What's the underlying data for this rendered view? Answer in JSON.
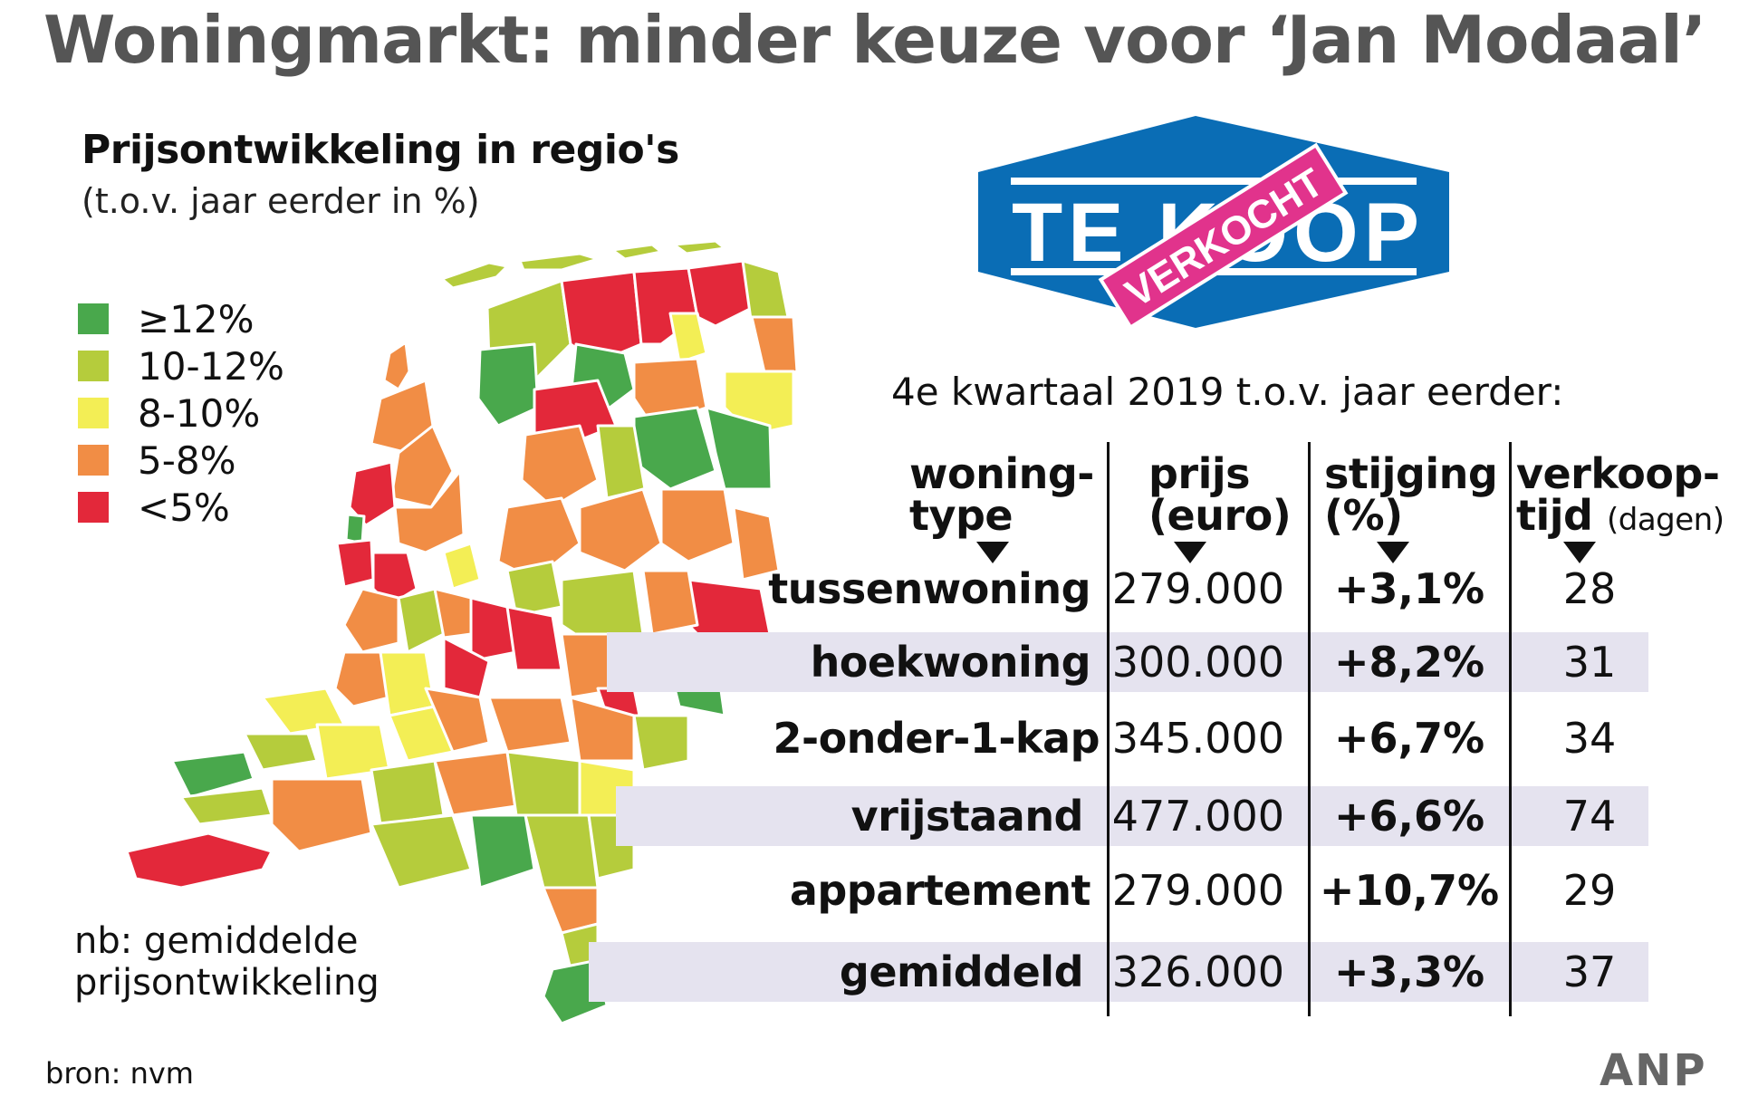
{
  "title": "Woningmarkt: minder keuze voor ‘Jan Modaal’",
  "map": {
    "title": "Prijsontwikkeling in regio's",
    "subtitle": "(t.o.v. jaar eerder in %)",
    "legend": [
      {
        "label": "≥12%",
        "color": "#49a84c"
      },
      {
        "label": "10-12%",
        "color": "#b5cc3c"
      },
      {
        "label": "8-10%",
        "color": "#f3ee55"
      },
      {
        "label": "5-8%",
        "color": "#f18d45"
      },
      {
        "label": "<5%",
        "color": "#e3283a"
      }
    ],
    "note_line1": "nb: gemiddelde",
    "note_line2": "prijsontwikkeling"
  },
  "sign": {
    "text": "TE KOOP",
    "stamp": "VERKOCHT",
    "sign_color": "#0a6db5",
    "stamp_color": "#e1338c"
  },
  "chart_data": {
    "type": "table",
    "title": "4e kwartaal 2019 t.o.v. jaar eerder:",
    "columns": [
      {
        "line1": "woning-",
        "line2": "type",
        "unit": ""
      },
      {
        "line1": "prijs",
        "line2": "(euro)",
        "unit": ""
      },
      {
        "line1": "stijging",
        "line2": "(%)",
        "unit": ""
      },
      {
        "line1": "verkoop-",
        "line2": "tijd",
        "unit": "(dagen)"
      }
    ],
    "rows": [
      {
        "type": "tussenwoning",
        "price": "279.000",
        "change": "+3,1%",
        "days": "28"
      },
      {
        "type": "hoekwoning",
        "price": "300.000",
        "change": "+8,2%",
        "days": "31"
      },
      {
        "type": "2-onder-1-kap",
        "price": "345.000",
        "change": "+6,7%",
        "days": "34"
      },
      {
        "type": "vrijstaand",
        "price": "477.000",
        "change": "+6,6%",
        "days": "74"
      },
      {
        "type": "appartement",
        "price": "279.000",
        "change": "+10,7%",
        "days": "29"
      },
      {
        "type": "gemiddeld",
        "price": "326.000",
        "change": "+3,3%",
        "days": "37"
      }
    ],
    "band_color": "#e5e3ef"
  },
  "footer": {
    "source": "bron:  nvm",
    "logo": "ANP"
  }
}
